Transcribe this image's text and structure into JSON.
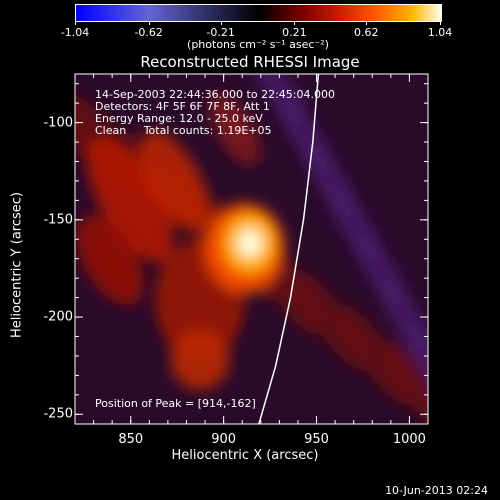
{
  "colorbar": {
    "ticks": [
      "-1.04",
      "-0.62",
      "-0.21",
      "0.21",
      "0.62",
      "1.04"
    ],
    "unit": "(photons cm⁻² s⁻¹ asec⁻²)"
  },
  "chart_data": {
    "type": "heatmap",
    "title": "Reconstructed RHESSI Image",
    "xlabel": "Heliocentric X (arcsec)",
    "ylabel": "Heliocentric Y (arcsec)",
    "xlim": [
      820,
      1010
    ],
    "ylim": [
      -255,
      -75
    ],
    "xticks": [
      "850",
      "900",
      "950",
      "1000"
    ],
    "yticks": [
      "-100",
      "-150",
      "-200",
      "-250"
    ],
    "clim": [
      -1.04,
      1.04
    ],
    "peak": [
      914,
      -162
    ],
    "limb_curve": {
      "x": [
        951,
        948,
        943,
        936,
        928,
        919
      ],
      "y": [
        -75,
        -110,
        -150,
        -190,
        -225,
        -255
      ]
    },
    "info": {
      "time": "14-Sep-2003 22:44:36.000 to 22:45:04.000",
      "detectors": "Detectors: 4F 5F 6F 7F 8F, Att 1",
      "energy": "Energy Range: 12.0 - 25.0 keV",
      "clean": "Clean     Total counts: 1.19E+05",
      "peak_text": "Position of Peak = [914,-162]"
    }
  },
  "timestamp": "10-Jun-2013 02:24"
}
